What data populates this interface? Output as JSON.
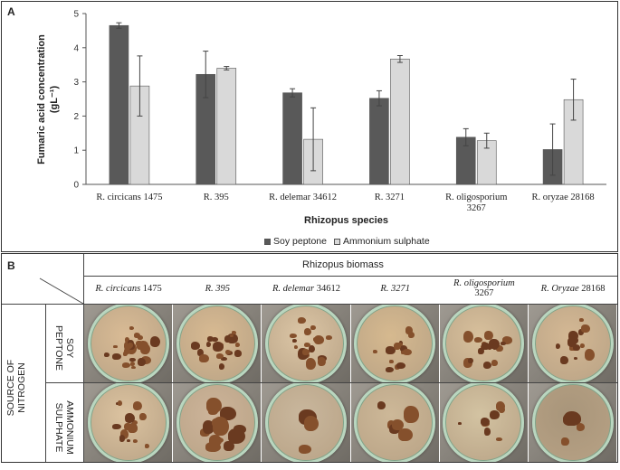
{
  "panel_a": {
    "letter": "A",
    "legend": [
      {
        "name": "Soy peptone",
        "color": "#595959"
      },
      {
        "name": "Ammonium sulphate",
        "color": "#d9d9d9"
      }
    ]
  },
  "chart_data": {
    "type": "bar",
    "title": "",
    "xlabel": "Rhizopus species",
    "ylabel_line1": "Fumaric acid  concentration",
    "ylabel_line2": "(gL⁻¹)",
    "ylim": [
      0,
      5
    ],
    "yticks": [
      "0",
      "1",
      "2",
      "3",
      "4",
      "5"
    ],
    "categories": [
      "R. circicans 1475",
      "R. 395",
      "R. delemar 34612",
      "R. 3271",
      "R. oligosporium 3267",
      "R. oryzae 28168"
    ],
    "series": [
      {
        "name": "Soy peptone",
        "color": "#595959",
        "values": [
          4.65,
          3.22,
          2.68,
          2.52,
          1.38,
          1.02
        ],
        "errors": [
          0.08,
          0.68,
          0.12,
          0.22,
          0.25,
          0.75
        ]
      },
      {
        "name": "Ammonium sulphate",
        "color": "#d9d9d9",
        "values": [
          2.88,
          3.4,
          1.32,
          3.67,
          1.28,
          2.48
        ],
        "errors": [
          0.88,
          0.05,
          0.92,
          0.1,
          0.22,
          0.6
        ]
      }
    ],
    "grid": false,
    "legend_position": "bottom"
  },
  "panel_b": {
    "letter": "B",
    "header": "Rhizopus biomass",
    "species": [
      {
        "italic": "R. circicans",
        "rest": "1475"
      },
      {
        "italic": "R. 395",
        "rest": ""
      },
      {
        "italic": "R. delemar",
        "rest": "34612"
      },
      {
        "italic": "R. 3271",
        "rest": ""
      },
      {
        "italic": "R. oligosporium",
        "rest": "3267"
      },
      {
        "italic": "R. Oryzae",
        "rest": "28168"
      }
    ],
    "source_label": "SOURCE OF NITROGEN",
    "row1_label": "SOY PEPTONE",
    "row2_label": "AMMONIUM SULPHATE"
  }
}
